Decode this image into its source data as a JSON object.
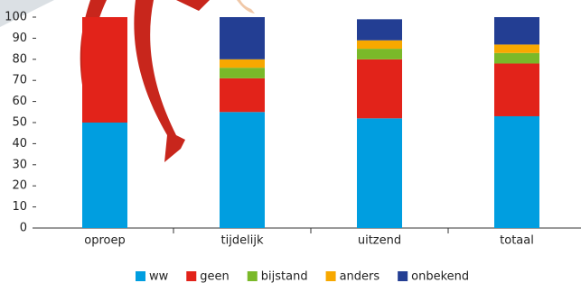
{
  "chart_data": {
    "type": "stacked-bar",
    "categories": [
      "oproep",
      "tijdelijk",
      "uitzend",
      "totaal"
    ],
    "series": [
      {
        "name": "ww",
        "color": "#009ee0",
        "values": [
          50,
          55,
          52,
          53
        ]
      },
      {
        "name": "geen",
        "color": "#e2231a",
        "values": [
          50,
          16,
          28,
          25
        ]
      },
      {
        "name": "bijstand",
        "color": "#7ab929",
        "values": [
          0,
          5,
          5,
          5
        ]
      },
      {
        "name": "anders",
        "color": "#f7a800",
        "values": [
          0,
          4,
          4,
          4
        ]
      },
      {
        "name": "onbekend",
        "color": "#233e93",
        "values": [
          0,
          20,
          10,
          13
        ]
      }
    ],
    "ylim": [
      0,
      100
    ],
    "yticks": [
      0,
      10,
      20,
      30,
      40,
      50,
      60,
      70,
      80,
      90,
      100
    ],
    "legend": "bottom"
  }
}
